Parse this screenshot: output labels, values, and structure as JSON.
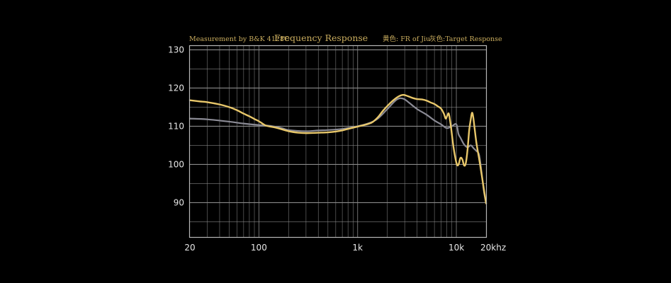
{
  "chart_data": {
    "type": "line",
    "title": "Frequency Response",
    "header_left": "Measurement by B&K 4128C",
    "legend": [
      {
        "label": "黄色: FR of Jiu",
        "color": "#e8c76a"
      },
      {
        "label": "灰色:Target Response",
        "color": "#8b8b95"
      }
    ],
    "x_scale": "log",
    "xlim": [
      20,
      20000
    ],
    "ylim": [
      81,
      131
    ],
    "x_ticks": [
      {
        "value": 20,
        "label": "20"
      },
      {
        "value": 100,
        "label": "100"
      },
      {
        "value": 1000,
        "label": "1k"
      },
      {
        "value": 10000,
        "label": "10k"
      },
      {
        "value": 20000,
        "label": "20khz"
      }
    ],
    "y_ticks": [
      {
        "value": 130,
        "label": "130"
      },
      {
        "value": 120,
        "label": "120"
      },
      {
        "value": 110,
        "label": "110"
      },
      {
        "value": 100,
        "label": "100"
      },
      {
        "value": 90,
        "label": "90"
      }
    ],
    "grid": true,
    "colors": {
      "background": "#000000",
      "grid": "#8a8a8a",
      "border": "#b8b8b8",
      "header": "#c9ac5e",
      "ticks": "#e6e6e6"
    },
    "series": [
      {
        "name": "Target Response",
        "color": "#8b8b95",
        "points": [
          [
            20,
            112
          ],
          [
            30,
            111.8
          ],
          [
            50,
            111.2
          ],
          [
            70,
            110.7
          ],
          [
            100,
            110.3
          ],
          [
            130,
            110.1
          ],
          [
            170,
            109.5
          ],
          [
            200,
            109
          ],
          [
            300,
            108.7
          ],
          [
            400,
            108.9
          ],
          [
            500,
            109
          ],
          [
            700,
            109.3
          ],
          [
            1000,
            110
          ],
          [
            1300,
            110.8
          ],
          [
            1600,
            112
          ],
          [
            2000,
            114.5
          ],
          [
            2500,
            117
          ],
          [
            2900,
            117.2
          ],
          [
            3300,
            116.2
          ],
          [
            4000,
            114.5
          ],
          [
            5000,
            113
          ],
          [
            6000,
            111.5
          ],
          [
            7000,
            110.5
          ],
          [
            8000,
            109.5
          ],
          [
            9000,
            110
          ],
          [
            10000,
            110.5
          ],
          [
            10500,
            108
          ],
          [
            11000,
            107
          ],
          [
            12000,
            105.2
          ],
          [
            13000,
            104.5
          ],
          [
            14000,
            105
          ],
          [
            15000,
            104.2
          ],
          [
            16000,
            103.5
          ],
          [
            17000,
            102.5
          ],
          [
            18000,
            98
          ],
          [
            19000,
            93
          ],
          [
            20000,
            90
          ]
        ]
      },
      {
        "name": "FR of Jiu",
        "color": "#e8c76a",
        "points": [
          [
            20,
            116.8
          ],
          [
            25,
            116.5
          ],
          [
            30,
            116.3
          ],
          [
            40,
            115.7
          ],
          [
            50,
            115
          ],
          [
            60,
            114.2
          ],
          [
            70,
            113.3
          ],
          [
            80,
            112.6
          ],
          [
            90,
            111.9
          ],
          [
            100,
            111.3
          ],
          [
            110,
            110.6
          ],
          [
            120,
            110.1
          ],
          [
            150,
            109.6
          ],
          [
            200,
            108.7
          ],
          [
            250,
            108.3
          ],
          [
            300,
            108.2
          ],
          [
            400,
            108.3
          ],
          [
            500,
            108.4
          ],
          [
            600,
            108.6
          ],
          [
            700,
            108.9
          ],
          [
            800,
            109.3
          ],
          [
            1000,
            109.9
          ],
          [
            1200,
            110.4
          ],
          [
            1400,
            111
          ],
          [
            1600,
            112.3
          ],
          [
            1800,
            114
          ],
          [
            2000,
            115.3
          ],
          [
            2300,
            116.8
          ],
          [
            2600,
            117.8
          ],
          [
            2900,
            118.2
          ],
          [
            3200,
            117.9
          ],
          [
            3600,
            117.4
          ],
          [
            4000,
            117.1
          ],
          [
            4500,
            117
          ],
          [
            5000,
            116.7
          ],
          [
            5500,
            116.2
          ],
          [
            6000,
            115.8
          ],
          [
            6500,
            115.2
          ],
          [
            7000,
            114.6
          ],
          [
            7500,
            113.2
          ],
          [
            7800,
            112
          ],
          [
            8100,
            112.8
          ],
          [
            8400,
            113.2
          ],
          [
            8800,
            110
          ],
          [
            9300,
            105
          ],
          [
            9800,
            101.5
          ],
          [
            10200,
            99.8
          ],
          [
            10600,
            100.2
          ],
          [
            11000,
            101.7
          ],
          [
            11500,
            101.3
          ],
          [
            12000,
            99.7
          ],
          [
            12500,
            100.5
          ],
          [
            13000,
            104
          ],
          [
            13500,
            109
          ],
          [
            14000,
            111.8
          ],
          [
            14400,
            113.5
          ],
          [
            14800,
            112.5
          ],
          [
            15300,
            109.5
          ],
          [
            16000,
            105.5
          ],
          [
            17000,
            101.5
          ],
          [
            18000,
            97.5
          ],
          [
            19000,
            93.5
          ],
          [
            20000,
            89.8
          ]
        ]
      }
    ]
  }
}
